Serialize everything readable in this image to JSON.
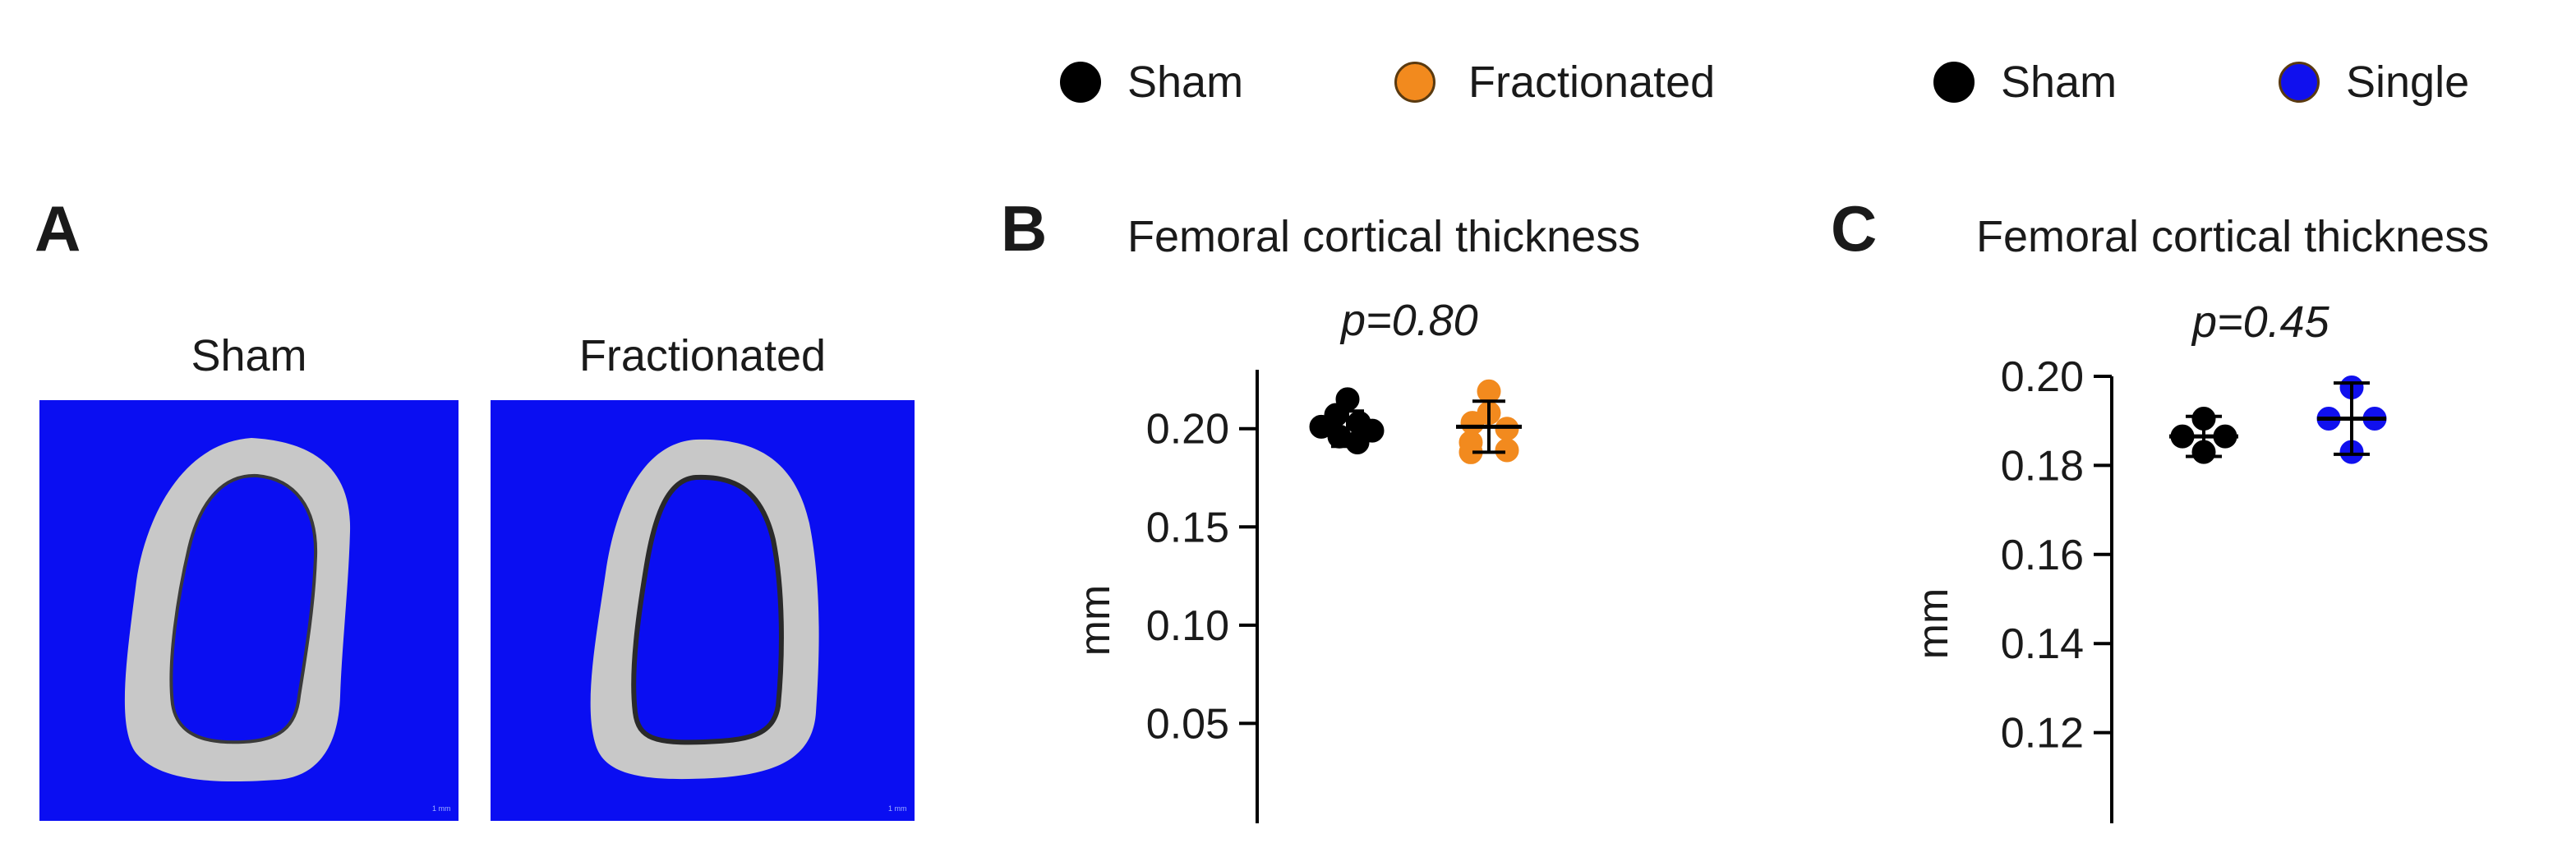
{
  "legends": [
    {
      "items": [
        {
          "label": "Sham",
          "color": "#000000"
        },
        {
          "label": "Fractionated",
          "color": "#f28a1e"
        }
      ]
    },
    {
      "items": [
        {
          "label": "Sham",
          "color": "#000000"
        },
        {
          "label": "Single",
          "color": "#1010ee"
        }
      ]
    }
  ],
  "panel_a": {
    "letter": "A",
    "images": [
      {
        "label": "Sham",
        "icon": "bone-cross-section-image"
      },
      {
        "label": "Fractionated",
        "icon": "bone-cross-section-image"
      }
    ],
    "background_color": "#0a0ef2",
    "bone_color": "#c8c8c8"
  },
  "chart_data": [
    {
      "letter": "B",
      "type": "scatter",
      "title": "Femoral  cortical thickness",
      "pvalue": "p=0.80",
      "ylabel": "mm",
      "xlabel": "",
      "ylim": [
        0.0,
        0.23
      ],
      "yticks": [
        0.05,
        0.1,
        0.15,
        0.2
      ],
      "ytick_labels": [
        "0.05",
        "0.10",
        "0.15",
        "0.20"
      ],
      "series": [
        {
          "name": "Sham",
          "color": "#000000",
          "mean": 0.2,
          "sd": 0.009,
          "points": [
            0.215,
            0.207,
            0.203,
            0.201,
            0.199,
            0.196,
            0.193
          ]
        },
        {
          "name": "Fractionated",
          "color": "#f28a1e",
          "mean": 0.201,
          "sd": 0.013,
          "points": [
            0.219,
            0.208,
            0.203,
            0.2,
            0.193,
            0.189,
            0.188
          ]
        }
      ]
    },
    {
      "letter": "C",
      "type": "scatter",
      "title": "Femoral  cortical thickness",
      "pvalue": "p=0.45",
      "ylabel": "mm",
      "xlabel": "",
      "ylim": [
        0.1,
        0.2
      ],
      "yticks": [
        0.12,
        0.14,
        0.16,
        0.18,
        0.2
      ],
      "ytick_labels": [
        "0.12",
        "0.14",
        "0.16",
        "0.18",
        "0.20"
      ],
      "series": [
        {
          "name": "Sham",
          "color": "#000000",
          "mean": 0.1865,
          "sd": 0.0045,
          "points": [
            0.1905,
            0.1865,
            0.1865,
            0.183
          ]
        },
        {
          "name": "Single",
          "color": "#1010ee",
          "mean": 0.1905,
          "sd": 0.008,
          "points": [
            0.1975,
            0.1905,
            0.1905,
            0.183
          ]
        }
      ]
    }
  ]
}
